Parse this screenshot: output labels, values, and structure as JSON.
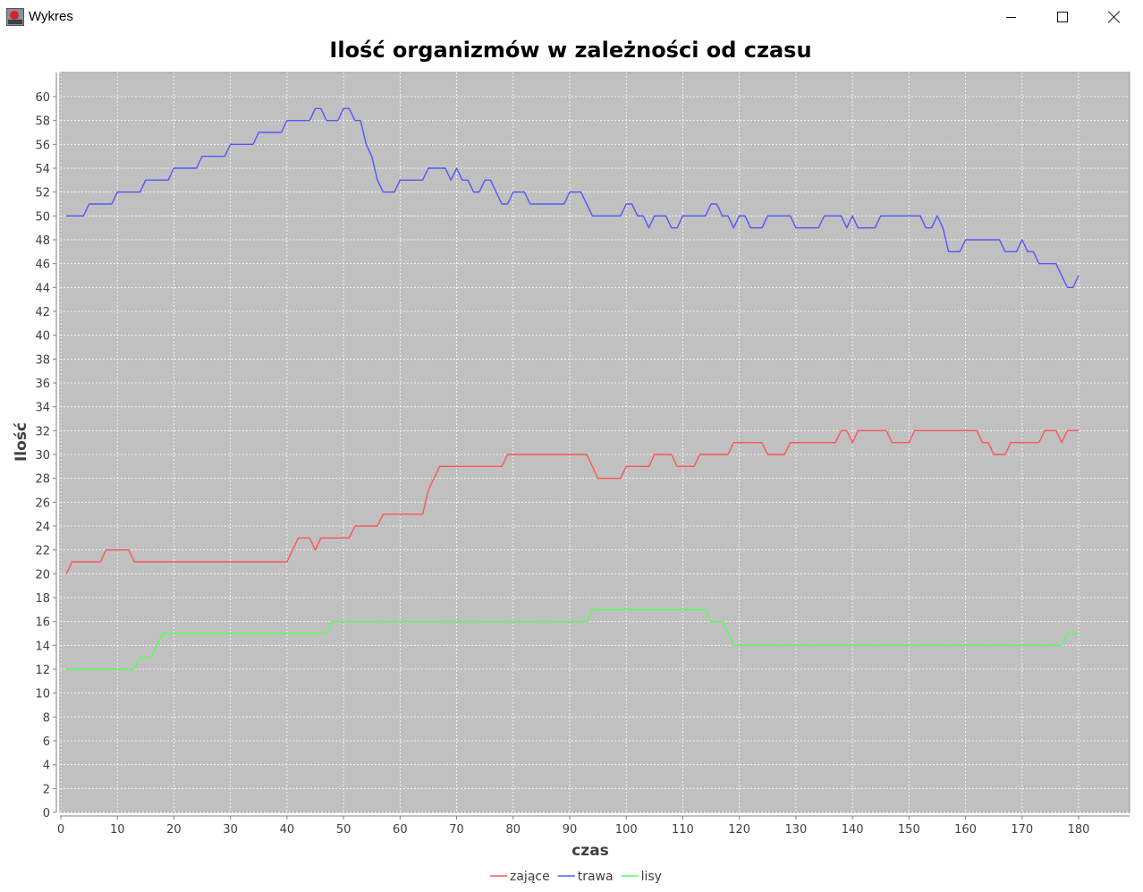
{
  "window": {
    "title": "Wykres",
    "icon": "app-icon",
    "buttons": {
      "minimize": "minimize-icon",
      "maximize": "maximize-icon",
      "close": "close-icon"
    }
  },
  "colors": {
    "plot_background": "#c0c0c0",
    "grid": "#ffffff",
    "zajace": "#ff5555",
    "trawa": "#5555ff",
    "lisy": "#55ff55"
  },
  "chart_data": {
    "type": "line",
    "title": "Ilość organizmów w zależności od czasu",
    "xlabel": "czas",
    "ylabel": "Ilość",
    "xlim": [
      0,
      190
    ],
    "ylim": [
      0,
      62
    ],
    "xticks": [
      0,
      10,
      20,
      30,
      40,
      50,
      60,
      70,
      80,
      90,
      100,
      110,
      120,
      130,
      140,
      150,
      160,
      170,
      180
    ],
    "yticks": [
      0,
      2,
      4,
      6,
      8,
      10,
      12,
      14,
      16,
      18,
      20,
      22,
      24,
      26,
      28,
      30,
      32,
      34,
      36,
      38,
      40,
      42,
      44,
      46,
      48,
      50,
      52,
      54,
      56,
      58,
      60
    ],
    "grid": true,
    "legend": "bottom",
    "series": [
      {
        "name": "zające",
        "color": "#ff5555",
        "points": [
          [
            1,
            20
          ],
          [
            2,
            21
          ],
          [
            7,
            21
          ],
          [
            8,
            22
          ],
          [
            12,
            22
          ],
          [
            13,
            21
          ],
          [
            40,
            21
          ],
          [
            42,
            23
          ],
          [
            44,
            23
          ],
          [
            45,
            22
          ],
          [
            46,
            23
          ],
          [
            51,
            23
          ],
          [
            52,
            24
          ],
          [
            56,
            24
          ],
          [
            57,
            25
          ],
          [
            64,
            25
          ],
          [
            65,
            27
          ],
          [
            67,
            29
          ],
          [
            78,
            29
          ],
          [
            79,
            30
          ],
          [
            93,
            30
          ],
          [
            95,
            28
          ],
          [
            99,
            28
          ],
          [
            100,
            29
          ],
          [
            104,
            29
          ],
          [
            105,
            30
          ],
          [
            108,
            30
          ],
          [
            109,
            29
          ],
          [
            112,
            29
          ],
          [
            113,
            30
          ],
          [
            118,
            30
          ],
          [
            119,
            31
          ],
          [
            124,
            31
          ],
          [
            125,
            30
          ],
          [
            128,
            30
          ],
          [
            129,
            31
          ],
          [
            137,
            31
          ],
          [
            138,
            32
          ],
          [
            139,
            32
          ],
          [
            140,
            31
          ],
          [
            141,
            32
          ],
          [
            146,
            32
          ],
          [
            147,
            31
          ],
          [
            150,
            31
          ],
          [
            151,
            32
          ],
          [
            162,
            32
          ],
          [
            163,
            31
          ],
          [
            164,
            31
          ],
          [
            165,
            30
          ],
          [
            167,
            30
          ],
          [
            168,
            31
          ],
          [
            173,
            31
          ],
          [
            174,
            32
          ],
          [
            176,
            32
          ],
          [
            177,
            31
          ],
          [
            178,
            32
          ],
          [
            180,
            32
          ]
        ]
      },
      {
        "name": "trawa",
        "color": "#5555ff",
        "points": [
          [
            1,
            50
          ],
          [
            4,
            50
          ],
          [
            5,
            51
          ],
          [
            9,
            51
          ],
          [
            10,
            52
          ],
          [
            14,
            52
          ],
          [
            15,
            53
          ],
          [
            19,
            53
          ],
          [
            20,
            54
          ],
          [
            24,
            54
          ],
          [
            25,
            55
          ],
          [
            29,
            55
          ],
          [
            30,
            56
          ],
          [
            34,
            56
          ],
          [
            35,
            57
          ],
          [
            39,
            57
          ],
          [
            40,
            58
          ],
          [
            44,
            58
          ],
          [
            45,
            59
          ],
          [
            46,
            59
          ],
          [
            47,
            58
          ],
          [
            49,
            58
          ],
          [
            50,
            59
          ],
          [
            51,
            59
          ],
          [
            52,
            58
          ],
          [
            53,
            58
          ],
          [
            54,
            56
          ],
          [
            55,
            55
          ],
          [
            56,
            53
          ],
          [
            57,
            52
          ],
          [
            59,
            52
          ],
          [
            60,
            53
          ],
          [
            64,
            53
          ],
          [
            65,
            54
          ],
          [
            68,
            54
          ],
          [
            69,
            53
          ],
          [
            70,
            54
          ],
          [
            71,
            53
          ],
          [
            72,
            53
          ],
          [
            73,
            52
          ],
          [
            74,
            52
          ],
          [
            75,
            53
          ],
          [
            76,
            53
          ],
          [
            78,
            51
          ],
          [
            79,
            51
          ],
          [
            80,
            52
          ],
          [
            82,
            52
          ],
          [
            83,
            51
          ],
          [
            89,
            51
          ],
          [
            90,
            52
          ],
          [
            92,
            52
          ],
          [
            94,
            50
          ],
          [
            99,
            50
          ],
          [
            100,
            51
          ],
          [
            101,
            51
          ],
          [
            102,
            50
          ],
          [
            103,
            50
          ],
          [
            104,
            49
          ],
          [
            105,
            50
          ],
          [
            107,
            50
          ],
          [
            108,
            49
          ],
          [
            109,
            49
          ],
          [
            110,
            50
          ],
          [
            114,
            50
          ],
          [
            115,
            51
          ],
          [
            116,
            51
          ],
          [
            117,
            50
          ],
          [
            118,
            50
          ],
          [
            119,
            49
          ],
          [
            120,
            50
          ],
          [
            121,
            50
          ],
          [
            122,
            49
          ],
          [
            124,
            49
          ],
          [
            125,
            50
          ],
          [
            129,
            50
          ],
          [
            130,
            49
          ],
          [
            134,
            49
          ],
          [
            135,
            50
          ],
          [
            138,
            50
          ],
          [
            139,
            49
          ],
          [
            140,
            50
          ],
          [
            141,
            49
          ],
          [
            144,
            49
          ],
          [
            145,
            50
          ],
          [
            152,
            50
          ],
          [
            153,
            49
          ],
          [
            154,
            49
          ],
          [
            155,
            50
          ],
          [
            156,
            49
          ],
          [
            157,
            47
          ],
          [
            159,
            47
          ],
          [
            160,
            48
          ],
          [
            166,
            48
          ],
          [
            167,
            47
          ],
          [
            169,
            47
          ],
          [
            170,
            48
          ],
          [
            171,
            47
          ],
          [
            172,
            47
          ],
          [
            173,
            46
          ],
          [
            176,
            46
          ],
          [
            177,
            45
          ],
          [
            178,
            44
          ],
          [
            179,
            44
          ],
          [
            180,
            45
          ]
        ]
      },
      {
        "name": "lisy",
        "color": "#55ff55",
        "points": [
          [
            1,
            12
          ],
          [
            13,
            12
          ],
          [
            14,
            13
          ],
          [
            16,
            13
          ],
          [
            18,
            15
          ],
          [
            47,
            15
          ],
          [
            48,
            16
          ],
          [
            93,
            16
          ],
          [
            94,
            17
          ],
          [
            114,
            17
          ],
          [
            115,
            16
          ],
          [
            117,
            16
          ],
          [
            119,
            14
          ],
          [
            177,
            14
          ],
          [
            178,
            15
          ],
          [
            180,
            15
          ]
        ]
      }
    ]
  }
}
